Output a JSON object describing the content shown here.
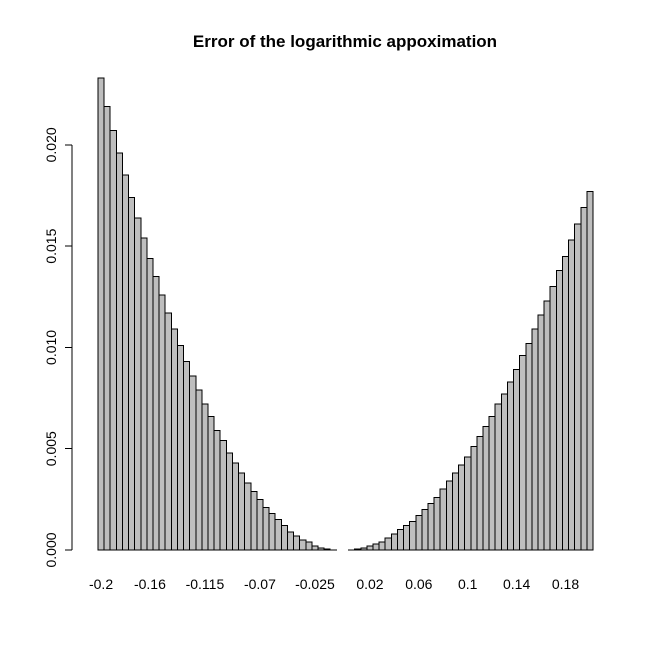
{
  "chart_data": {
    "type": "bar",
    "title": "Error of the logarithmic appoximation",
    "xlabel": "",
    "ylabel": "",
    "ylim": [
      0,
      0.0233
    ],
    "yticks": [
      "0.000",
      "0.005",
      "0.010",
      "0.015",
      "0.020"
    ],
    "ytick_values": [
      0,
      0.005,
      0.01,
      0.015,
      0.02
    ],
    "xtick_labels": [
      "-0.2",
      "-0.16",
      "-0.115",
      "-0.07",
      "-0.025",
      "0.02",
      "0.06",
      "0.1",
      "0.14",
      "0.18"
    ],
    "xtick_bar_index": [
      0,
      8,
      17,
      26,
      35,
      44,
      52,
      60,
      68,
      76
    ],
    "categories": [
      -0.2,
      -0.195,
      -0.19,
      -0.185,
      -0.18,
      -0.175,
      -0.17,
      -0.165,
      -0.16,
      -0.155,
      -0.15,
      -0.145,
      -0.14,
      -0.135,
      -0.13,
      -0.125,
      -0.12,
      -0.115,
      -0.11,
      -0.105,
      -0.1,
      -0.095,
      -0.09,
      -0.085,
      -0.08,
      -0.075,
      -0.07,
      -0.065,
      -0.06,
      -0.055,
      -0.05,
      -0.045,
      -0.04,
      -0.035,
      -0.03,
      -0.025,
      -0.02,
      -0.015,
      -0.01,
      -0.005,
      0,
      0.005,
      0.01,
      0.015,
      0.02,
      0.025,
      0.03,
      0.035,
      0.04,
      0.045,
      0.05,
      0.055,
      0.06,
      0.065,
      0.07,
      0.075,
      0.08,
      0.085,
      0.09,
      0.095,
      0.1,
      0.105,
      0.11,
      0.115,
      0.12,
      0.125,
      0.13,
      0.135,
      0.14,
      0.145,
      0.15,
      0.155,
      0.16,
      0.165,
      0.17,
      0.175,
      0.18,
      0.185,
      0.19,
      0.195,
      0.2
    ],
    "values": [
      0.0233,
      0.0219,
      0.0207,
      0.0196,
      0.0185,
      0.0174,
      0.0164,
      0.0154,
      0.0144,
      0.0135,
      0.0126,
      0.0117,
      0.0109,
      0.0101,
      0.0093,
      0.0086,
      0.0079,
      0.0072,
      0.0066,
      0.0059,
      0.0054,
      0.0048,
      0.0043,
      0.0038,
      0.0033,
      0.0029,
      0.0025,
      0.0021,
      0.0018,
      0.0015,
      0.0012,
      0.0009,
      0.0007,
      0.0005,
      0.0004,
      0.0002,
      0.0001,
      4e-05,
      1e-05,
      0.0,
      0.0,
      1e-05,
      4e-05,
      0.0001,
      0.0002,
      0.0003,
      0.0004,
      0.0006,
      0.0008,
      0.001,
      0.0012,
      0.0014,
      0.0017,
      0.002,
      0.0023,
      0.0026,
      0.003,
      0.0034,
      0.0038,
      0.0042,
      0.0046,
      0.0051,
      0.0056,
      0.0061,
      0.0066,
      0.0072,
      0.0077,
      0.0083,
      0.0089,
      0.0096,
      0.0102,
      0.0109,
      0.0116,
      0.0123,
      0.013,
      0.0138,
      0.0145,
      0.0153,
      0.0161,
      0.0169,
      0.0177
    ]
  }
}
